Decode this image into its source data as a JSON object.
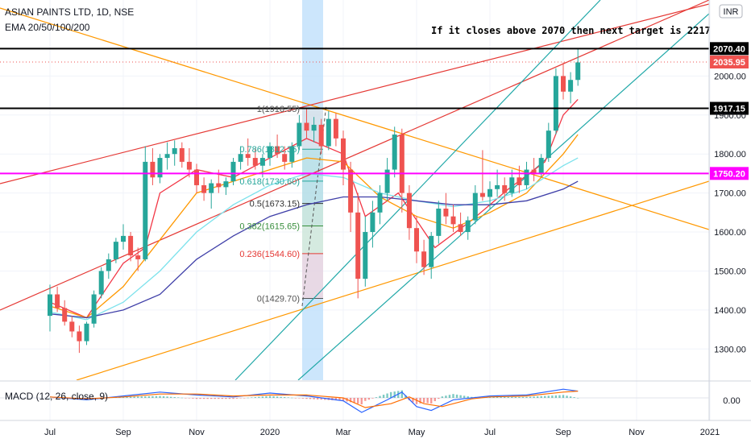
{
  "header": {
    "symbol": "ASIAN PAINTS LTD, 1D, NSE",
    "indicator": "EMA 20/50/100/200",
    "currency": "INR"
  },
  "annotation": "If it closes above 2070 then next target is 2217",
  "macd_label": "MACD (12, 26, close, 9)",
  "macd_tick": "0.00",
  "colors": {
    "up": "#26a69a",
    "down": "#ef5350",
    "ema20": "#f23645",
    "ema50": "#ff9800",
    "ema100": "#7de2ec",
    "ema200": "#3f3fa8",
    "magenta": "#ff00ff",
    "teal_channel": "#20a8a8",
    "red_channel": "#e53935",
    "orange_line": "#ff9800"
  },
  "chart_data": {
    "type": "line",
    "title": "ASIAN PAINTS LTD, 1D, NSE",
    "ylabel": "INR",
    "ylim": [
      1220,
      2195
    ],
    "yticks": [
      1300,
      1400,
      1500,
      1600,
      1700,
      1800,
      1900,
      2000
    ],
    "ytick_labels": [
      "1300.00",
      "1400.00",
      "1500.00",
      "1600.00",
      "1700.00",
      "1800.00",
      "1900.00",
      "2000.00"
    ],
    "xticks": [
      {
        "label": "Jul",
        "m": 0
      },
      {
        "label": "Sep",
        "m": 2
      },
      {
        "label": "Nov",
        "m": 4
      },
      {
        "label": "2020",
        "m": 6
      },
      {
        "label": "Mar",
        "m": 8
      },
      {
        "label": "May",
        "m": 10
      },
      {
        "label": "Jul",
        "m": 12
      },
      {
        "label": "Sep",
        "m": 14
      },
      {
        "label": "Nov",
        "m": 16
      },
      {
        "label": "2021",
        "m": 18
      }
    ],
    "price_levels": [
      {
        "label": "2070.40",
        "value": 2070.4,
        "style": "black-line"
      },
      {
        "label": "2035.95",
        "value": 2035.95,
        "style": "last-price"
      },
      {
        "label": "1917.15",
        "value": 1917.15,
        "style": "black-line"
      },
      {
        "label": "1750.20",
        "value": 1750.2,
        "style": "magenta-line"
      }
    ],
    "fib_levels": [
      {
        "ratio": "1",
        "value": 1916.55,
        "text": "1(1916.55)",
        "color": "#555555"
      },
      {
        "ratio": "0.786",
        "value": 1812.35,
        "text": "0.786(1812.35)",
        "color": "#26a69a"
      },
      {
        "ratio": "0.618",
        "value": 1730.6,
        "text": "0.618(1730.60)",
        "color": "#26a69a"
      },
      {
        "ratio": "0.5",
        "value": 1673.15,
        "text": "0.5(1673.15)",
        "color": "#333333"
      },
      {
        "ratio": "0.382",
        "value": 1615.65,
        "text": "0.382(1615.65)",
        "color": "#388e3c"
      },
      {
        "ratio": "0.236",
        "value": 1544.6,
        "text": "0.236(1544.60)",
        "color": "#e53935"
      },
      {
        "ratio": "0",
        "value": 1429.7,
        "text": "0(1429.70)",
        "color": "#555555"
      }
    ],
    "candles": [
      {
        "m": 0.0,
        "o": 1385,
        "h": 1465,
        "l": 1345,
        "c": 1440
      },
      {
        "m": 0.2,
        "o": 1440,
        "h": 1460,
        "l": 1395,
        "c": 1405
      },
      {
        "m": 0.4,
        "o": 1405,
        "h": 1425,
        "l": 1360,
        "c": 1370
      },
      {
        "m": 0.6,
        "o": 1370,
        "h": 1385,
        "l": 1330,
        "c": 1345
      },
      {
        "m": 0.8,
        "o": 1345,
        "h": 1360,
        "l": 1290,
        "c": 1320
      },
      {
        "m": 1.0,
        "o": 1320,
        "h": 1370,
        "l": 1310,
        "c": 1365
      },
      {
        "m": 1.2,
        "o": 1365,
        "h": 1450,
        "l": 1355,
        "c": 1440
      },
      {
        "m": 1.4,
        "o": 1440,
        "h": 1510,
        "l": 1430,
        "c": 1500
      },
      {
        "m": 1.6,
        "o": 1500,
        "h": 1545,
        "l": 1480,
        "c": 1530
      },
      {
        "m": 1.8,
        "o": 1530,
        "h": 1585,
        "l": 1520,
        "c": 1575
      },
      {
        "m": 2.0,
        "o": 1575,
        "h": 1620,
        "l": 1555,
        "c": 1590
      },
      {
        "m": 2.2,
        "o": 1590,
        "h": 1600,
        "l": 1525,
        "c": 1540
      },
      {
        "m": 2.4,
        "o": 1540,
        "h": 1560,
        "l": 1500,
        "c": 1530
      },
      {
        "m": 2.6,
        "o": 1530,
        "h": 1820,
        "l": 1525,
        "c": 1780
      },
      {
        "m": 2.8,
        "o": 1780,
        "h": 1815,
        "l": 1720,
        "c": 1740
      },
      {
        "m": 3.0,
        "o": 1740,
        "h": 1800,
        "l": 1725,
        "c": 1790
      },
      {
        "m": 3.2,
        "o": 1790,
        "h": 1830,
        "l": 1760,
        "c": 1800
      },
      {
        "m": 3.4,
        "o": 1800,
        "h": 1835,
        "l": 1770,
        "c": 1815
      },
      {
        "m": 3.6,
        "o": 1815,
        "h": 1830,
        "l": 1765,
        "c": 1780
      },
      {
        "m": 3.8,
        "o": 1780,
        "h": 1815,
        "l": 1740,
        "c": 1760
      },
      {
        "m": 4.0,
        "o": 1760,
        "h": 1775,
        "l": 1700,
        "c": 1720
      },
      {
        "m": 4.2,
        "o": 1720,
        "h": 1740,
        "l": 1680,
        "c": 1700
      },
      {
        "m": 4.4,
        "o": 1700,
        "h": 1735,
        "l": 1660,
        "c": 1725
      },
      {
        "m": 4.6,
        "o": 1725,
        "h": 1760,
        "l": 1700,
        "c": 1715
      },
      {
        "m": 4.8,
        "o": 1715,
        "h": 1740,
        "l": 1695,
        "c": 1730
      },
      {
        "m": 5.0,
        "o": 1730,
        "h": 1790,
        "l": 1720,
        "c": 1780
      },
      {
        "m": 5.2,
        "o": 1780,
        "h": 1820,
        "l": 1760,
        "c": 1800
      },
      {
        "m": 5.4,
        "o": 1800,
        "h": 1840,
        "l": 1770,
        "c": 1790
      },
      {
        "m": 5.6,
        "o": 1790,
        "h": 1815,
        "l": 1760,
        "c": 1770
      },
      {
        "m": 5.8,
        "o": 1770,
        "h": 1800,
        "l": 1740,
        "c": 1790
      },
      {
        "m": 6.0,
        "o": 1790,
        "h": 1830,
        "l": 1770,
        "c": 1820
      },
      {
        "m": 6.2,
        "o": 1820,
        "h": 1850,
        "l": 1790,
        "c": 1800
      },
      {
        "m": 6.4,
        "o": 1800,
        "h": 1820,
        "l": 1760,
        "c": 1780
      },
      {
        "m": 6.6,
        "o": 1780,
        "h": 1830,
        "l": 1765,
        "c": 1820
      },
      {
        "m": 6.8,
        "o": 1820,
        "h": 1900,
        "l": 1810,
        "c": 1880
      },
      {
        "m": 7.0,
        "o": 1880,
        "h": 1916,
        "l": 1840,
        "c": 1860
      },
      {
        "m": 7.2,
        "o": 1860,
        "h": 1895,
        "l": 1830,
        "c": 1875
      },
      {
        "m": 7.4,
        "o": 1875,
        "h": 1890,
        "l": 1800,
        "c": 1820
      },
      {
        "m": 7.6,
        "o": 1820,
        "h": 1910,
        "l": 1810,
        "c": 1890
      },
      {
        "m": 7.8,
        "o": 1890,
        "h": 1905,
        "l": 1820,
        "c": 1840
      },
      {
        "m": 8.0,
        "o": 1840,
        "h": 1860,
        "l": 1720,
        "c": 1760
      },
      {
        "m": 8.2,
        "o": 1760,
        "h": 1780,
        "l": 1600,
        "c": 1650
      },
      {
        "m": 8.4,
        "o": 1650,
        "h": 1700,
        "l": 1430,
        "c": 1480
      },
      {
        "m": 8.6,
        "o": 1480,
        "h": 1640,
        "l": 1460,
        "c": 1600
      },
      {
        "m": 8.8,
        "o": 1600,
        "h": 1680,
        "l": 1560,
        "c": 1650
      },
      {
        "m": 9.0,
        "o": 1650,
        "h": 1720,
        "l": 1620,
        "c": 1700
      },
      {
        "m": 9.2,
        "o": 1700,
        "h": 1790,
        "l": 1680,
        "c": 1760
      },
      {
        "m": 9.4,
        "o": 1760,
        "h": 1870,
        "l": 1740,
        "c": 1850
      },
      {
        "m": 9.6,
        "o": 1850,
        "h": 1865,
        "l": 1650,
        "c": 1700
      },
      {
        "m": 9.8,
        "o": 1700,
        "h": 1720,
        "l": 1580,
        "c": 1610
      },
      {
        "m": 10.0,
        "o": 1610,
        "h": 1640,
        "l": 1520,
        "c": 1550
      },
      {
        "m": 10.2,
        "o": 1550,
        "h": 1580,
        "l": 1490,
        "c": 1510
      },
      {
        "m": 10.4,
        "o": 1510,
        "h": 1600,
        "l": 1480,
        "c": 1590
      },
      {
        "m": 10.6,
        "o": 1590,
        "h": 1680,
        "l": 1570,
        "c": 1660
      },
      {
        "m": 10.8,
        "o": 1660,
        "h": 1700,
        "l": 1620,
        "c": 1640
      },
      {
        "m": 11.0,
        "o": 1640,
        "h": 1670,
        "l": 1600,
        "c": 1620
      },
      {
        "m": 11.2,
        "o": 1620,
        "h": 1650,
        "l": 1590,
        "c": 1600
      },
      {
        "m": 11.4,
        "o": 1600,
        "h": 1640,
        "l": 1580,
        "c": 1630
      },
      {
        "m": 11.6,
        "o": 1630,
        "h": 1720,
        "l": 1620,
        "c": 1700
      },
      {
        "m": 11.8,
        "o": 1700,
        "h": 1810,
        "l": 1680,
        "c": 1690
      },
      {
        "m": 12.0,
        "o": 1690,
        "h": 1730,
        "l": 1660,
        "c": 1710
      },
      {
        "m": 12.2,
        "o": 1710,
        "h": 1760,
        "l": 1690,
        "c": 1720
      },
      {
        "m": 12.4,
        "o": 1720,
        "h": 1740,
        "l": 1680,
        "c": 1700
      },
      {
        "m": 12.6,
        "o": 1700,
        "h": 1760,
        "l": 1690,
        "c": 1740
      },
      {
        "m": 12.8,
        "o": 1740,
        "h": 1770,
        "l": 1700,
        "c": 1720
      },
      {
        "m": 13.0,
        "o": 1720,
        "h": 1780,
        "l": 1710,
        "c": 1760
      },
      {
        "m": 13.2,
        "o": 1760,
        "h": 1790,
        "l": 1730,
        "c": 1750
      },
      {
        "m": 13.4,
        "o": 1750,
        "h": 1800,
        "l": 1740,
        "c": 1790
      },
      {
        "m": 13.6,
        "o": 1790,
        "h": 1880,
        "l": 1780,
        "c": 1860
      },
      {
        "m": 13.8,
        "o": 1860,
        "h": 2020,
        "l": 1850,
        "c": 2000
      },
      {
        "m": 14.0,
        "o": 2000,
        "h": 2035,
        "l": 1940,
        "c": 1960
      },
      {
        "m": 14.2,
        "o": 1960,
        "h": 2010,
        "l": 1930,
        "c": 1990
      },
      {
        "m": 14.4,
        "o": 1990,
        "h": 2070,
        "l": 1975,
        "c": 2035
      }
    ],
    "ema_series": [
      {
        "name": "EMA 20",
        "color": "#f23645",
        "points": [
          [
            0,
            1420
          ],
          [
            1,
            1380
          ],
          [
            2,
            1520
          ],
          [
            2.6,
            1560
          ],
          [
            3,
            1700
          ],
          [
            4,
            1760
          ],
          [
            5,
            1740
          ],
          [
            6,
            1790
          ],
          [
            7,
            1840
          ],
          [
            8,
            1800
          ],
          [
            8.6,
            1640
          ],
          [
            9.5,
            1700
          ],
          [
            10.5,
            1560
          ],
          [
            11.5,
            1630
          ],
          [
            12.5,
            1710
          ],
          [
            13.5,
            1780
          ],
          [
            14,
            1900
          ],
          [
            14.4,
            1940
          ]
        ]
      },
      {
        "name": "EMA 50",
        "color": "#ff9800",
        "points": [
          [
            0,
            1410
          ],
          [
            1,
            1380
          ],
          [
            2,
            1460
          ],
          [
            3,
            1580
          ],
          [
            4,
            1700
          ],
          [
            5,
            1730
          ],
          [
            6,
            1760
          ],
          [
            7,
            1790
          ],
          [
            8,
            1780
          ],
          [
            9,
            1690
          ],
          [
            10,
            1640
          ],
          [
            11,
            1610
          ],
          [
            12,
            1650
          ],
          [
            13,
            1700
          ],
          [
            14,
            1800
          ],
          [
            14.4,
            1850
          ]
        ]
      },
      {
        "name": "EMA 100",
        "color": "#7de2ec",
        "points": [
          [
            0,
            1395
          ],
          [
            1,
            1375
          ],
          [
            2,
            1420
          ],
          [
            3,
            1500
          ],
          [
            4,
            1600
          ],
          [
            5,
            1670
          ],
          [
            6,
            1720
          ],
          [
            7,
            1750
          ],
          [
            8,
            1740
          ],
          [
            9,
            1700
          ],
          [
            10,
            1680
          ],
          [
            11,
            1665
          ],
          [
            12,
            1680
          ],
          [
            13,
            1710
          ],
          [
            14,
            1770
          ],
          [
            14.4,
            1790
          ]
        ]
      },
      {
        "name": "EMA 200",
        "color": "#3f3fa8",
        "points": [
          [
            0,
            1390
          ],
          [
            1,
            1380
          ],
          [
            2,
            1400
          ],
          [
            3,
            1440
          ],
          [
            4,
            1530
          ],
          [
            5,
            1590
          ],
          [
            6,
            1640
          ],
          [
            7,
            1670
          ],
          [
            8,
            1690
          ],
          [
            9,
            1690
          ],
          [
            10,
            1680
          ],
          [
            11,
            1670
          ],
          [
            12,
            1670
          ],
          [
            13,
            1680
          ],
          [
            14,
            1710
          ],
          [
            14.4,
            1730
          ]
        ]
      }
    ],
    "macd": {
      "macd_line": [
        [
          0,
          0.1
        ],
        [
          1,
          -0.2
        ],
        [
          2,
          0.2
        ],
        [
          3,
          0.6
        ],
        [
          4,
          0.3
        ],
        [
          5,
          0.1
        ],
        [
          6,
          0.5
        ],
        [
          7,
          0.2
        ],
        [
          8,
          -0.3
        ],
        [
          8.5,
          -1.5
        ],
        [
          9.2,
          -0.2
        ],
        [
          9.6,
          0.6
        ],
        [
          10,
          -0.9
        ],
        [
          10.4,
          -1.3
        ],
        [
          11,
          -0.2
        ],
        [
          12,
          0.2
        ],
        [
          13,
          0.3
        ],
        [
          14,
          0.9
        ],
        [
          14.4,
          0.7
        ]
      ],
      "signal_line": [
        [
          0,
          0.1
        ],
        [
          1,
          -0.1
        ],
        [
          2,
          0.1
        ],
        [
          3,
          0.4
        ],
        [
          4,
          0.4
        ],
        [
          5,
          0.2
        ],
        [
          6,
          0.3
        ],
        [
          7,
          0.3
        ],
        [
          8,
          0.0
        ],
        [
          8.6,
          -1.0
        ],
        [
          9.3,
          -0.6
        ],
        [
          9.8,
          0.1
        ],
        [
          10.2,
          -0.6
        ],
        [
          10.7,
          -0.9
        ],
        [
          11.5,
          -0.1
        ],
        [
          12,
          0.1
        ],
        [
          13,
          0.2
        ],
        [
          14,
          0.6
        ],
        [
          14.4,
          0.7
        ]
      ]
    }
  }
}
